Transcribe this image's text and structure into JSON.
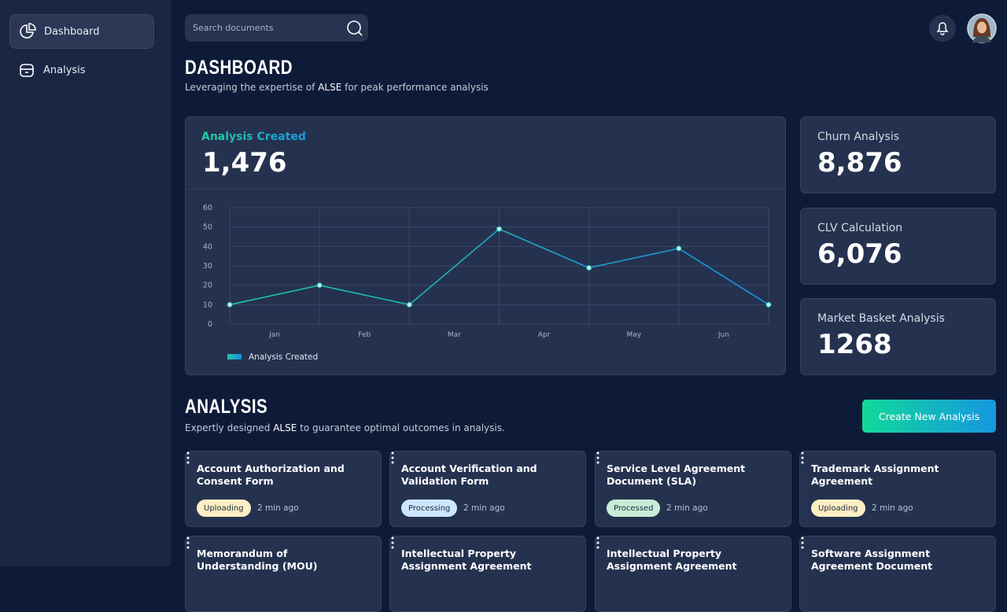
{
  "sidebar": {
    "nav": [
      {
        "label": "Dashboard",
        "active": true
      },
      {
        "label": "Analysis",
        "active": false
      }
    ]
  },
  "search": {
    "placeholder": "Search documents"
  },
  "dashboard": {
    "title": "DASHBOARD",
    "subtitle": [
      "Leveraging the expertise of ",
      "ALSE",
      " for peak performance analysis"
    ]
  },
  "main_stat": {
    "label": "Analysis Created",
    "value": "1,476"
  },
  "stats": [
    {
      "label": "Churn Analysis",
      "value": "8,876"
    },
    {
      "label": "CLV Calculation",
      "value": "6,076"
    },
    {
      "label": "Market Basket Analysis",
      "value": "1268"
    }
  ],
  "chart_data": {
    "type": "line",
    "categories": [
      "Jan",
      "Feb",
      "Mar",
      "Apr",
      "May",
      "Jun",
      null
    ],
    "series": [
      {
        "name": "Analysis Created",
        "color": "#1fc7a6",
        "color_end": "#1a8fe0",
        "values": [
          10,
          20,
          10,
          49,
          29,
          39,
          10
        ]
      }
    ],
    "ylim": [
      0,
      60
    ],
    "yticks": [
      0,
      10,
      20,
      30,
      40,
      50,
      60
    ],
    "grid": true,
    "legend": "bottom-left"
  },
  "analysis": {
    "title": "ANALYSIS",
    "subtitle": [
      "Expertly designed ",
      "ALSE",
      " to guarantee optimal outcomes in analysis."
    ],
    "button": "Create New Analysis",
    "cards": [
      {
        "title": "Account Authorization and Consent Form",
        "status": "Uploading",
        "status_color": "#fdefc3",
        "time": "2 min ago"
      },
      {
        "title": "Account Verification and Validation Form",
        "status": "Processing",
        "status_color": "#cbe7fb",
        "time": "2 min ago"
      },
      {
        "title": "Service Level Agreement Document (SLA)",
        "status": "Processed",
        "status_color": "#c8edd6",
        "time": "2 min ago"
      },
      {
        "title": "Trademark Assignment Agreement",
        "status": "Uploading",
        "status_color": "#fdefc3",
        "time": "2 min ago"
      },
      {
        "title": "Memorandum of Understanding (MOU)"
      },
      {
        "title": "Intellectual Property Assignment Agreement"
      },
      {
        "title": "Intellectual Property Assignment Agreement"
      },
      {
        "title": "Software Assignment Agreement Document"
      }
    ]
  }
}
